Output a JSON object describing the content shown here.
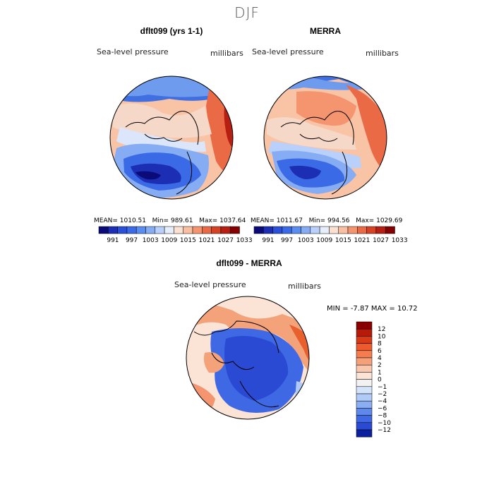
{
  "season_title": "DJF",
  "top_left": {
    "title": "dflt099 (yrs 1-1)",
    "variable": "Sea-level pressure",
    "units": "millibars",
    "stats": {
      "mean_label": "MEAN=",
      "mean": "1010.51",
      "min_label": "Min=",
      "min": "989.61",
      "max_label": "Max=",
      "max": "1037.64"
    }
  },
  "top_right": {
    "title": "MERRA",
    "variable": "Sea-level pressure",
    "units": "millibars",
    "stats": {
      "mean_label": "MEAN=",
      "mean": "1011.67",
      "min_label": "Min=",
      "min": "994.56",
      "max_label": "Max=",
      "max": "1029.69"
    }
  },
  "abs_colorbar": {
    "colors": [
      "#0a0a78",
      "#1c2fb4",
      "#2a4fd8",
      "#3a6ae6",
      "#5b8cef",
      "#86acf4",
      "#b8d0fa",
      "#e6eefc",
      "#fbe1d2",
      "#f8bfa2",
      "#f49570",
      "#ea6a45",
      "#d64224",
      "#b61f12",
      "#850000"
    ],
    "labels": [
      "991",
      "997",
      "1003",
      "1009",
      "1015",
      "1021",
      "1027",
      "1033"
    ]
  },
  "diff_panel": {
    "title": "dflt099 - MERRA",
    "variable": "Sea-level pressure",
    "units": "millibars",
    "min_label": "MIN =",
    "min": "-7.87",
    "max_label": "MAX =",
    "max": "10.72"
  },
  "diff_colorbar": {
    "colors": [
      "#8a0000",
      "#b81a0a",
      "#d83a18",
      "#ee5a2c",
      "#f47c4e",
      "#f6a07a",
      "#f9c7ad",
      "#fbe3d5",
      "#f2f2f2",
      "#d2e3fa",
      "#b0cbf7",
      "#8aaef2",
      "#5f88ec",
      "#3f69e4",
      "#2a4ad4",
      "#0c1f9e"
    ],
    "labels": [
      "12",
      "10",
      "8",
      "6",
      "4",
      "2",
      "1",
      "0",
      "−1",
      "−2",
      "−4",
      "−6",
      "−8",
      "−10",
      "−12"
    ]
  }
}
